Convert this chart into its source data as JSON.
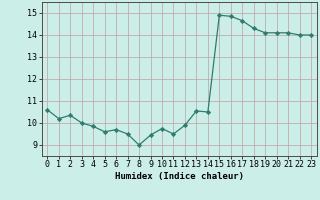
{
  "x": [
    0,
    1,
    2,
    3,
    4,
    5,
    6,
    7,
    8,
    9,
    10,
    11,
    12,
    13,
    14,
    15,
    16,
    17,
    18,
    19,
    20,
    21,
    22,
    23
  ],
  "y": [
    10.6,
    10.2,
    10.35,
    10.0,
    9.85,
    9.6,
    9.7,
    9.5,
    9.0,
    9.45,
    9.75,
    9.5,
    9.9,
    10.55,
    10.5,
    14.9,
    14.85,
    14.65,
    14.3,
    14.1,
    14.1,
    14.1,
    14.0,
    14.0
  ],
  "line_color": "#2e7d6e",
  "marker": "D",
  "marker_size": 2.2,
  "bg_color": "#cceee9",
  "grid_color": "#c0a0a0",
  "xlabel": "Humidex (Indice chaleur)",
  "ylim": [
    8.5,
    15.5
  ],
  "xlim": [
    -0.5,
    23.5
  ],
  "yticks": [
    9,
    10,
    11,
    12,
    13,
    14,
    15
  ],
  "xticks": [
    0,
    1,
    2,
    3,
    4,
    5,
    6,
    7,
    8,
    9,
    10,
    11,
    12,
    13,
    14,
    15,
    16,
    17,
    18,
    19,
    20,
    21,
    22,
    23
  ],
  "label_fontsize": 6.5,
  "tick_fontsize": 6.0
}
